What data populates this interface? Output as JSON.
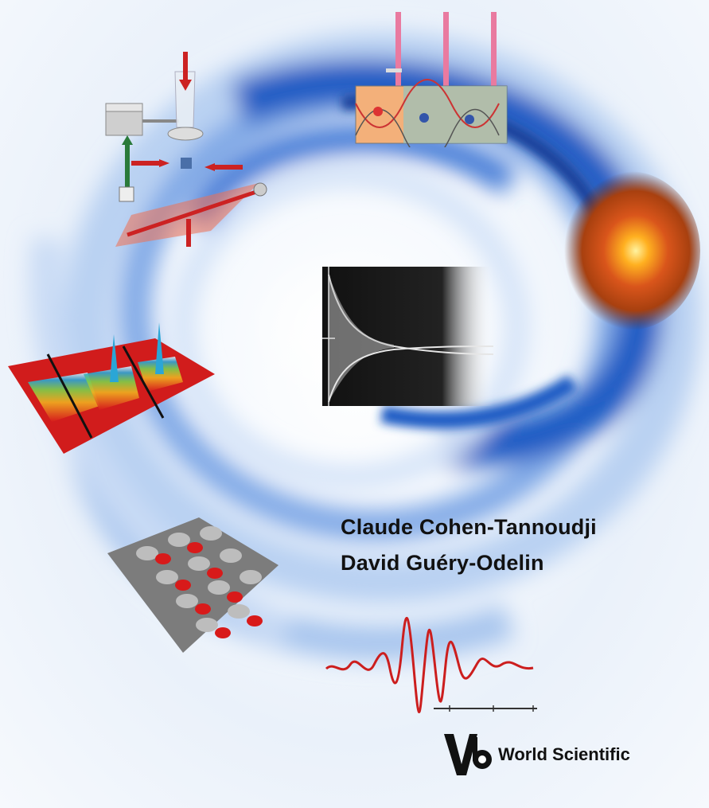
{
  "cover": {
    "authors": [
      "Claude Cohen-Tannoudji",
      "David Guéry-Odelin"
    ],
    "publisher": "World Scientific",
    "colors": {
      "swirl_blue": "#1d5bc4",
      "swirl_light": "#a9c6ee",
      "accent_red": "#c8202a",
      "text": "#111111"
    },
    "illustrations": [
      "laser-trap-apparatus",
      "optical-lattice-wells",
      "orange-atom-cloud",
      "decay-curve-plot",
      "bec-density-peaks",
      "egg-crate-lattice",
      "oscillation-signal"
    ]
  }
}
